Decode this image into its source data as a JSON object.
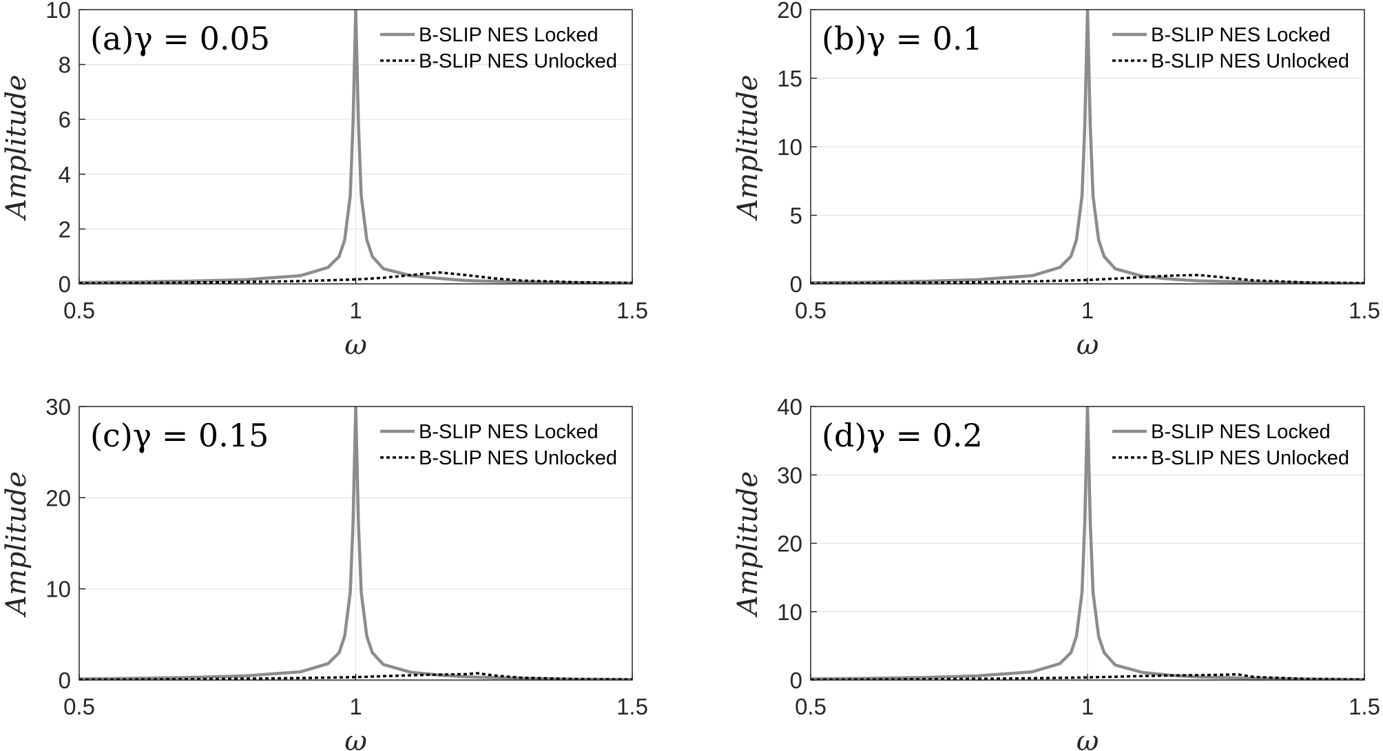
{
  "chart_data": [
    {
      "type": "line",
      "title": "(a)γ = 0.05",
      "xlabel": "ω",
      "ylabel": "Amplitude",
      "xlim": [
        0.5,
        1.5
      ],
      "ylim": [
        0,
        10
      ],
      "xticks": [
        "0.5",
        "1",
        "1.5"
      ],
      "yticks": [
        "0",
        "2",
        "4",
        "6",
        "8",
        "10"
      ],
      "grid": true,
      "legend_position": "top-right",
      "series": [
        {
          "name": "B-SLIP NES Locked",
          "style": "solid",
          "color": "#8c8c8c",
          "x": [
            0.5,
            0.6,
            0.7,
            0.8,
            0.9,
            0.95,
            0.97,
            0.98,
            0.99,
            0.995,
            1.0,
            1.005,
            1.01,
            1.02,
            1.03,
            1.05,
            1.1,
            1.15,
            1.2,
            1.3,
            1.4,
            1.5
          ],
          "y": [
            0.05,
            0.07,
            0.1,
            0.15,
            0.3,
            0.6,
            1.0,
            1.6,
            3.2,
            5.8,
            10.0,
            5.8,
            3.2,
            1.6,
            1.0,
            0.55,
            0.3,
            0.2,
            0.12,
            0.07,
            0.04,
            0.03
          ]
        },
        {
          "name": "B-SLIP NES Unlocked",
          "style": "dotted",
          "color": "#000000",
          "x": [
            0.5,
            0.6,
            0.7,
            0.8,
            0.9,
            1.0,
            1.05,
            1.1,
            1.15,
            1.2,
            1.25,
            1.3,
            1.4,
            1.5
          ],
          "y": [
            0.02,
            0.03,
            0.05,
            0.07,
            0.1,
            0.16,
            0.22,
            0.32,
            0.42,
            0.32,
            0.2,
            0.12,
            0.06,
            0.03
          ]
        }
      ]
    },
    {
      "type": "line",
      "title": "(b)γ = 0.1",
      "xlabel": "ω",
      "ylabel": "Amplitude",
      "xlim": [
        0.5,
        1.5
      ],
      "ylim": [
        0,
        20
      ],
      "xticks": [
        "0.5",
        "1",
        "1.5"
      ],
      "yticks": [
        "0",
        "5",
        "10",
        "15",
        "20"
      ],
      "grid": true,
      "legend_position": "top-right",
      "series": [
        {
          "name": "B-SLIP NES Locked",
          "style": "solid",
          "color": "#8c8c8c",
          "x": [
            0.5,
            0.6,
            0.7,
            0.8,
            0.9,
            0.95,
            0.97,
            0.98,
            0.99,
            0.995,
            1.0,
            1.005,
            1.01,
            1.02,
            1.03,
            1.05,
            1.1,
            1.15,
            1.2,
            1.3,
            1.4,
            1.5
          ],
          "y": [
            0.08,
            0.12,
            0.18,
            0.3,
            0.6,
            1.2,
            2.0,
            3.2,
            6.4,
            11.5,
            20.0,
            11.5,
            6.4,
            3.2,
            2.0,
            1.1,
            0.55,
            0.35,
            0.22,
            0.12,
            0.07,
            0.04
          ]
        },
        {
          "name": "B-SLIP NES Unlocked",
          "style": "dotted",
          "color": "#000000",
          "x": [
            0.5,
            0.6,
            0.7,
            0.8,
            0.9,
            1.0,
            1.05,
            1.1,
            1.15,
            1.2,
            1.25,
            1.3,
            1.4,
            1.5
          ],
          "y": [
            0.03,
            0.05,
            0.08,
            0.12,
            0.18,
            0.28,
            0.38,
            0.5,
            0.6,
            0.65,
            0.45,
            0.25,
            0.1,
            0.05
          ]
        }
      ]
    },
    {
      "type": "line",
      "title": "(c)γ = 0.15",
      "xlabel": "ω",
      "ylabel": "Amplitude",
      "xlim": [
        0.5,
        1.5
      ],
      "ylim": [
        0,
        30
      ],
      "xticks": [
        "0.5",
        "1",
        "1.5"
      ],
      "yticks": [
        "0",
        "10",
        "20",
        "30"
      ],
      "grid": true,
      "legend_position": "top-right",
      "series": [
        {
          "name": "B-SLIP NES Locked",
          "style": "solid",
          "color": "#8c8c8c",
          "x": [
            0.5,
            0.6,
            0.7,
            0.8,
            0.9,
            0.95,
            0.97,
            0.98,
            0.99,
            0.995,
            1.0,
            1.005,
            1.01,
            1.02,
            1.03,
            1.05,
            1.1,
            1.15,
            1.2,
            1.3,
            1.4,
            1.5
          ],
          "y": [
            0.12,
            0.18,
            0.28,
            0.45,
            0.9,
            1.8,
            3.0,
            4.8,
            9.6,
            17.0,
            30.0,
            17.0,
            9.6,
            4.8,
            3.0,
            1.7,
            0.85,
            0.55,
            0.35,
            0.18,
            0.1,
            0.06
          ]
        },
        {
          "name": "B-SLIP NES Unlocked",
          "style": "dotted",
          "color": "#000000",
          "x": [
            0.5,
            0.6,
            0.7,
            0.8,
            0.9,
            1.0,
            1.05,
            1.1,
            1.15,
            1.2,
            1.22,
            1.25,
            1.3,
            1.4,
            1.5
          ],
          "y": [
            0.04,
            0.06,
            0.1,
            0.15,
            0.22,
            0.32,
            0.42,
            0.52,
            0.6,
            0.65,
            0.75,
            0.5,
            0.25,
            0.1,
            0.05
          ]
        }
      ]
    },
    {
      "type": "line",
      "title": "(d)γ = 0.2",
      "xlabel": "ω",
      "ylabel": "Amplitude",
      "xlim": [
        0.5,
        1.5
      ],
      "ylim": [
        0,
        40
      ],
      "xticks": [
        "0.5",
        "1",
        "1.5"
      ],
      "yticks": [
        "0",
        "10",
        "20",
        "30",
        "40"
      ],
      "grid": true,
      "legend_position": "top-right",
      "series": [
        {
          "name": "B-SLIP NES Locked",
          "style": "solid",
          "color": "#8c8c8c",
          "x": [
            0.5,
            0.6,
            0.7,
            0.8,
            0.9,
            0.95,
            0.97,
            0.98,
            0.99,
            0.995,
            1.0,
            1.005,
            1.01,
            1.02,
            1.03,
            1.05,
            1.1,
            1.15,
            1.2,
            1.3,
            1.4,
            1.5
          ],
          "y": [
            0.16,
            0.24,
            0.36,
            0.6,
            1.2,
            2.4,
            4.0,
            6.4,
            12.8,
            23.0,
            40.0,
            23.0,
            12.8,
            6.4,
            4.0,
            2.2,
            1.1,
            0.7,
            0.45,
            0.25,
            0.14,
            0.08
          ]
        },
        {
          "name": "B-SLIP NES Unlocked",
          "style": "dotted",
          "color": "#000000",
          "x": [
            0.5,
            0.6,
            0.7,
            0.8,
            0.9,
            1.0,
            1.05,
            1.1,
            1.15,
            1.2,
            1.25,
            1.27,
            1.3,
            1.4,
            1.5
          ],
          "y": [
            0.05,
            0.08,
            0.12,
            0.18,
            0.26,
            0.38,
            0.48,
            0.58,
            0.66,
            0.72,
            0.78,
            0.85,
            0.45,
            0.15,
            0.06
          ]
        }
      ]
    }
  ]
}
